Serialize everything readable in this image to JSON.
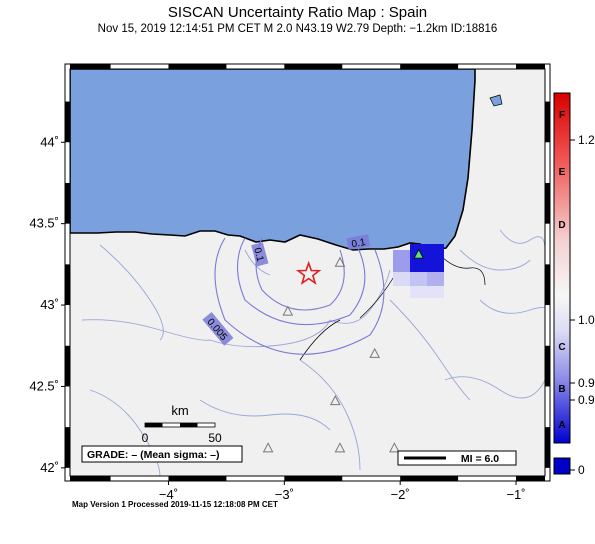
{
  "header": {
    "title": "SISCAN Uncertainty Ratio Map : Spain",
    "subtitle": "Nov 15, 2019 12:14:51 PM CET   M 2.0    N43.19 W2.79    Depth: −1.2km    ID:18816"
  },
  "map": {
    "lon_range": [
      -4.85,
      -0.75
    ],
    "lat_range": [
      41.95,
      44.45
    ],
    "lon_ticks": [
      {
        "value": -4,
        "label": "−4˚"
      },
      {
        "value": -3,
        "label": "−3˚"
      },
      {
        "value": -2,
        "label": "−2˚"
      },
      {
        "value": -1,
        "label": "−1˚"
      }
    ],
    "lat_ticks": [
      {
        "value": 42.0,
        "label": "42˚"
      },
      {
        "value": 42.5,
        "label": "42.5˚"
      },
      {
        "value": 43.0,
        "label": "43˚"
      },
      {
        "value": 43.5,
        "label": "43.5˚"
      },
      {
        "value": 44.0,
        "label": "44˚"
      }
    ],
    "epicenter": {
      "lon": -2.79,
      "lat": 43.19
    },
    "contour_labels": [
      {
        "text": "0.1",
        "lon": -3.22,
        "lat": 43.31,
        "rotate": 75
      },
      {
        "text": "0.1",
        "lon": -2.36,
        "lat": 43.38,
        "rotate": -10
      },
      {
        "text": "0.005",
        "lon": -3.58,
        "lat": 42.85,
        "rotate": 50
      }
    ],
    "stations": [
      {
        "lon": -2.52,
        "lat": 43.26
      },
      {
        "lon": -2.97,
        "lat": 42.96
      },
      {
        "lon": -2.22,
        "lat": 42.7
      },
      {
        "lon": -2.56,
        "lat": 42.41
      },
      {
        "lon": -2.52,
        "lat": 42.12
      },
      {
        "lon": -2.05,
        "lat": 42.12
      },
      {
        "lon": -3.14,
        "lat": 42.12
      }
    ],
    "highlight_station": {
      "lon": -1.84,
      "lat": 43.31
    },
    "grade_label": "GRADE: – (Mean sigma: –)",
    "scale": {
      "unit": "km",
      "labels": [
        "0",
        "50"
      ]
    },
    "mi_legend": "MI = 6.0"
  },
  "colorbar": {
    "letters": [
      "F",
      "E",
      "D",
      "C",
      "B",
      "A"
    ],
    "values": [
      "1.2",
      "1.0",
      "0.9",
      "0.9",
      "0"
    ]
  },
  "footer": "Map Version 1 Processed 2019-11-15 12:18:08 PM CET",
  "colors": {
    "ocean": "#7aa1dd",
    "land": "#f0f0f0",
    "contour": "#7a7ad8",
    "epicenter": "#e02020",
    "cell_strong": "#1414d8"
  }
}
